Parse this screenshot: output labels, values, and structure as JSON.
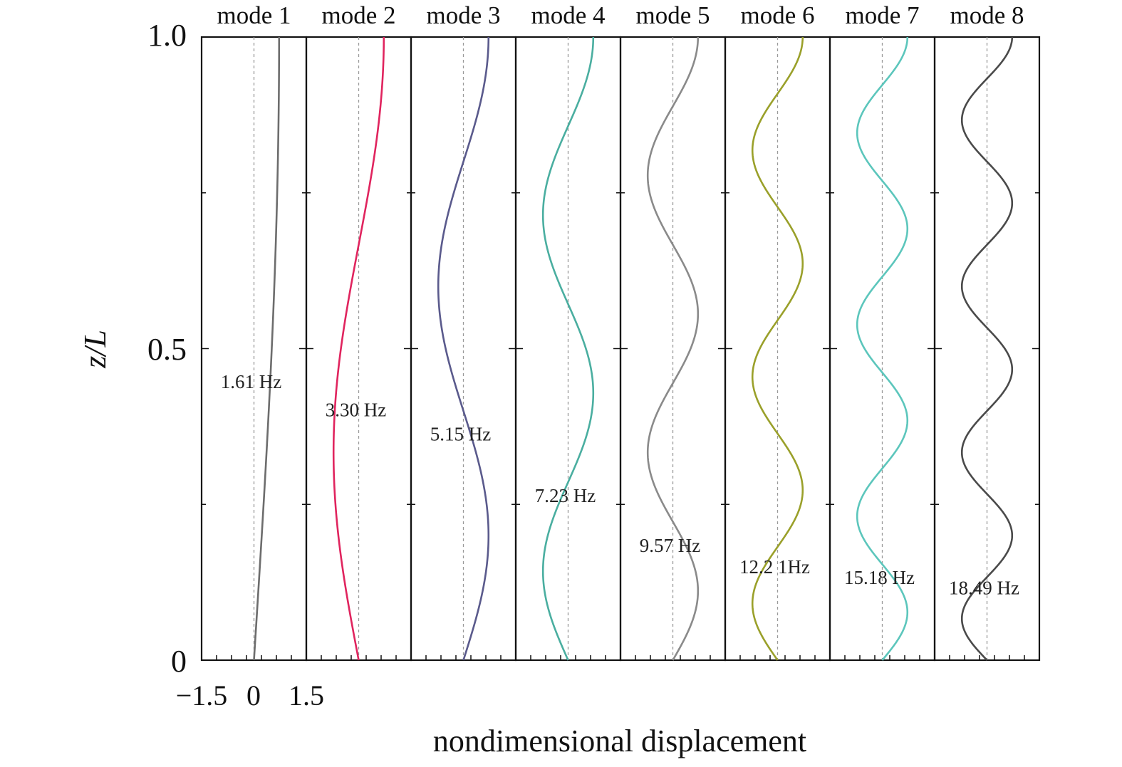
{
  "chart_data": {
    "type": "line",
    "xlabel": "nondimensional displacement",
    "ylabel": "z/L",
    "ylim": [
      0,
      1.0
    ],
    "xlim": [
      -1.5,
      1.5
    ],
    "y_ticks": [
      "0",
      "0.5",
      "1.0"
    ],
    "x_ticks": [
      "−1.5",
      "0",
      "1.5"
    ],
    "grid": false,
    "legend": "none",
    "modes": [
      {
        "title": "mode 1",
        "freq": "1.61 Hz",
        "n": 1,
        "color": "#6d6d6d"
      },
      {
        "title": "mode 2",
        "freq": "3.30 Hz",
        "n": 2,
        "color": "#e0245e"
      },
      {
        "title": "mode 3",
        "freq": "5.15 Hz",
        "n": 3,
        "color": "#5a5a8c"
      },
      {
        "title": "mode 4",
        "freq": "7.23 Hz",
        "n": 4,
        "color": "#4aaea0"
      },
      {
        "title": "mode 5",
        "freq": "9.57 Hz",
        "n": 5,
        "color": "#8a8a8a"
      },
      {
        "title": "mode 6",
        "freq": "12.2 1Hz",
        "n": 6,
        "color": "#9aa02a"
      },
      {
        "title": "mode 7",
        "freq": "15.18 Hz",
        "n": 7,
        "color": "#5cc6bc"
      },
      {
        "title": "mode 8",
        "freq": "18.49 Hz",
        "n": 8,
        "color": "#4a4a4a"
      }
    ]
  }
}
